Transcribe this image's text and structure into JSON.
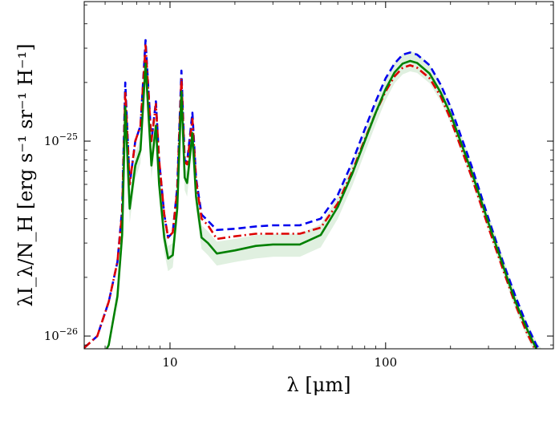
{
  "chart_data": {
    "type": "line",
    "xlabel": "λ [μm]",
    "ylabel": "λI_λ/N_H [erg s⁻¹ sr⁻¹ H⁻¹]",
    "xscale": "log",
    "yscale": "log",
    "xlim": [
      4.0,
      600
    ],
    "ylim": [
      8.6e-27,
      5.2e-25
    ],
    "x_ticks": [
      {
        "value": 10,
        "label": "10"
      },
      {
        "value": 100,
        "label": "100"
      }
    ],
    "y_ticks": [
      {
        "value": 1e-25,
        "label": "10",
        "exp": "−25"
      },
      {
        "value": 1e-26,
        "label": "10",
        "exp": "−26"
      }
    ],
    "grid": false,
    "series": [
      {
        "color": "#0000ee",
        "style": "dashed",
        "points": [
          [
            4.0,
            8.7e-27
          ],
          [
            4.6,
            1e-26
          ],
          [
            5.2,
            1.5e-26
          ],
          [
            5.7,
            2.4e-26
          ],
          [
            6.0,
            4.5e-26
          ],
          [
            6.2,
            2e-25
          ],
          [
            6.5,
            6e-26
          ],
          [
            6.9,
            1e-25
          ],
          [
            7.3,
            1.2e-25
          ],
          [
            7.7,
            3.3e-25
          ],
          [
            8.2,
            1e-25
          ],
          [
            8.6,
            1.6e-25
          ],
          [
            8.9,
            8e-26
          ],
          [
            9.4,
            4.2e-26
          ],
          [
            9.8,
            3.2e-26
          ],
          [
            10.3,
            3.4e-26
          ],
          [
            10.8,
            5.8e-26
          ],
          [
            11.3,
            2.3e-25
          ],
          [
            11.7,
            8e-26
          ],
          [
            12.0,
            7.8e-26
          ],
          [
            12.7,
            1.4e-25
          ],
          [
            13.2,
            6.5e-26
          ],
          [
            14.0,
            4.2e-26
          ],
          [
            15.0,
            3.9e-26
          ],
          [
            16.5,
            3.5e-26
          ],
          [
            20,
            3.55e-26
          ],
          [
            25,
            3.65e-26
          ],
          [
            30,
            3.7e-26
          ],
          [
            40,
            3.7e-26
          ],
          [
            50,
            4e-26
          ],
          [
            60,
            5.3e-26
          ],
          [
            70,
            7.8e-26
          ],
          [
            80,
            1.15e-25
          ],
          [
            90,
            1.6e-25
          ],
          [
            100,
            2.1e-25
          ],
          [
            110,
            2.5e-25
          ],
          [
            120,
            2.78e-25
          ],
          [
            130,
            2.85e-25
          ],
          [
            140,
            2.78e-25
          ],
          [
            160,
            2.45e-25
          ],
          [
            180,
            1.95e-25
          ],
          [
            200,
            1.5e-25
          ],
          [
            250,
            7.5e-26
          ],
          [
            300,
            4e-26
          ],
          [
            350,
            2.4e-26
          ],
          [
            400,
            1.6e-26
          ],
          [
            450,
            1.15e-26
          ],
          [
            500,
            9e-27
          ],
          [
            540,
            8e-27
          ]
        ]
      },
      {
        "color": "#dd0000",
        "style": "dashdot",
        "points": [
          [
            4.0,
            8.7e-27
          ],
          [
            4.6,
            1e-26
          ],
          [
            5.2,
            1.5e-26
          ],
          [
            5.7,
            2.4e-26
          ],
          [
            6.0,
            4.3e-26
          ],
          [
            6.2,
            1.8e-25
          ],
          [
            6.5,
            6e-26
          ],
          [
            6.9,
            1e-25
          ],
          [
            7.3,
            1.2e-25
          ],
          [
            7.7,
            3.1e-25
          ],
          [
            8.2,
            1e-25
          ],
          [
            8.6,
            1.55e-25
          ],
          [
            8.9,
            8e-26
          ],
          [
            9.4,
            4.2e-26
          ],
          [
            9.8,
            3.2e-26
          ],
          [
            10.3,
            3.4e-26
          ],
          [
            10.8,
            5.6e-26
          ],
          [
            11.3,
            2.1e-25
          ],
          [
            11.7,
            7.8e-26
          ],
          [
            12.0,
            7.6e-26
          ],
          [
            12.7,
            1.3e-25
          ],
          [
            13.2,
            6.3e-26
          ],
          [
            14.0,
            4e-26
          ],
          [
            15.0,
            3.7e-26
          ],
          [
            16.5,
            3.15e-26
          ],
          [
            20,
            3.25e-26
          ],
          [
            25,
            3.35e-26
          ],
          [
            30,
            3.35e-26
          ],
          [
            40,
            3.35e-26
          ],
          [
            50,
            3.6e-26
          ],
          [
            60,
            4.8e-26
          ],
          [
            70,
            7e-26
          ],
          [
            80,
            1.02e-25
          ],
          [
            90,
            1.4e-25
          ],
          [
            100,
            1.8e-25
          ],
          [
            110,
            2.15e-25
          ],
          [
            120,
            2.38e-25
          ],
          [
            130,
            2.45e-25
          ],
          [
            140,
            2.38e-25
          ],
          [
            160,
            2.1e-25
          ],
          [
            180,
            1.7e-25
          ],
          [
            200,
            1.3e-25
          ],
          [
            250,
            6.6e-26
          ],
          [
            300,
            3.6e-26
          ],
          [
            350,
            2.2e-26
          ],
          [
            400,
            1.45e-26
          ],
          [
            450,
            1.05e-26
          ],
          [
            500,
            8.3e-27
          ],
          [
            540,
            7.5e-27
          ]
        ]
      },
      {
        "color": "#008000",
        "style": "solid",
        "points": [
          [
            4.6,
            7e-27
          ],
          [
            5.2,
            9e-27
          ],
          [
            5.7,
            1.6e-26
          ],
          [
            6.0,
            3.3e-26
          ],
          [
            6.2,
            1.5e-25
          ],
          [
            6.5,
            4.5e-26
          ],
          [
            6.9,
            7.5e-26
          ],
          [
            7.3,
            9e-26
          ],
          [
            7.7,
            2.5e-25
          ],
          [
            8.2,
            7.5e-26
          ],
          [
            8.6,
            1.2e-25
          ],
          [
            8.9,
            6e-26
          ],
          [
            9.4,
            3.2e-26
          ],
          [
            9.8,
            2.5e-26
          ],
          [
            10.3,
            2.6e-26
          ],
          [
            10.8,
            4.5e-26
          ],
          [
            11.3,
            1.8e-25
          ],
          [
            11.7,
            6.5e-26
          ],
          [
            12.0,
            6.1e-26
          ],
          [
            12.7,
            1.1e-25
          ],
          [
            13.2,
            5.2e-26
          ],
          [
            14.0,
            3.2e-26
          ],
          [
            15.0,
            3e-26
          ],
          [
            16.5,
            2.65e-26
          ],
          [
            20,
            2.75e-26
          ],
          [
            25,
            2.9e-26
          ],
          [
            30,
            2.95e-26
          ],
          [
            40,
            2.95e-26
          ],
          [
            50,
            3.3e-26
          ],
          [
            60,
            4.6e-26
          ],
          [
            70,
            6.8e-26
          ],
          [
            80,
            1e-25
          ],
          [
            90,
            1.4e-25
          ],
          [
            100,
            1.85e-25
          ],
          [
            110,
            2.25e-25
          ],
          [
            120,
            2.5e-25
          ],
          [
            130,
            2.58e-25
          ],
          [
            140,
            2.52e-25
          ],
          [
            160,
            2.22e-25
          ],
          [
            180,
            1.78e-25
          ],
          [
            200,
            1.38e-25
          ],
          [
            250,
            7e-26
          ],
          [
            300,
            3.8e-26
          ],
          [
            350,
            2.3e-26
          ],
          [
            400,
            1.5e-26
          ],
          [
            450,
            1.1e-26
          ],
          [
            500,
            8.6e-27
          ],
          [
            540,
            7.6e-27
          ]
        ]
      }
    ],
    "band": {
      "color": "#008000",
      "opacity": 0.12,
      "x": [
        5.7,
        6.0,
        6.2,
        6.5,
        6.9,
        7.3,
        7.7,
        8.2,
        8.6,
        8.9,
        9.4,
        9.8,
        10.3,
        10.8,
        11.3,
        11.7,
        12.0,
        12.7,
        13.2,
        14.0,
        15.0,
        16.5,
        20,
        25,
        30,
        40,
        50,
        60,
        70,
        80,
        90,
        100,
        110,
        120,
        130,
        140,
        160,
        180,
        200,
        250,
        300,
        350,
        400,
        450,
        500,
        540
      ],
      "lower": [
        1.3e-26,
        2.8e-26,
        1.3e-25,
        3.8e-26,
        6.4e-26,
        7.7e-26,
        2.15e-25,
        6.4e-26,
        1.03e-25,
        5.1e-26,
        2.7e-26,
        2.15e-26,
        2.25e-26,
        3.9e-26,
        1.55e-25,
        5.6e-26,
        5.2e-26,
        9.4e-26,
        4.5e-26,
        2.8e-26,
        2.6e-26,
        2.3e-26,
        2.4e-26,
        2.5e-26,
        2.55e-26,
        2.55e-26,
        2.85e-26,
        4e-26,
        5.9e-26,
        8.7e-26,
        1.22e-25,
        1.62e-25,
        1.98e-25,
        2.2e-25,
        2.28e-25,
        2.24e-25,
        1.98e-25,
        1.6e-25,
        1.24e-25,
        6.3e-26,
        3.45e-26,
        2.1e-26,
        1.37e-26,
        1e-26,
        7.9e-27,
        7e-27
      ],
      "upper": [
        2e-26,
        3.9e-26,
        1.7e-25,
        5.2e-26,
        8.6e-26,
        1.04e-25,
        2.85e-25,
        8.6e-26,
        1.38e-25,
        6.9e-26,
        3.7e-26,
        2.9e-26,
        3e-26,
        5.2e-26,
        2.05e-25,
        7.4e-26,
        7e-26,
        1.25e-25,
        6e-26,
        3.7e-26,
        3.45e-26,
        3.05e-26,
        3.15e-26,
        3.3e-26,
        3.35e-26,
        3.35e-26,
        3.75e-26,
        5.2e-26,
        7.7e-26,
        1.13e-25,
        1.58e-25,
        2.08e-25,
        2.52e-25,
        2.8e-25,
        2.9e-25,
        2.82e-25,
        2.48e-25,
        1.98e-25,
        1.54e-25,
        7.8e-26,
        4.2e-26,
        2.55e-26,
        1.66e-26,
        1.2e-26,
        9.4e-27,
        8.3e-27
      ]
    }
  }
}
